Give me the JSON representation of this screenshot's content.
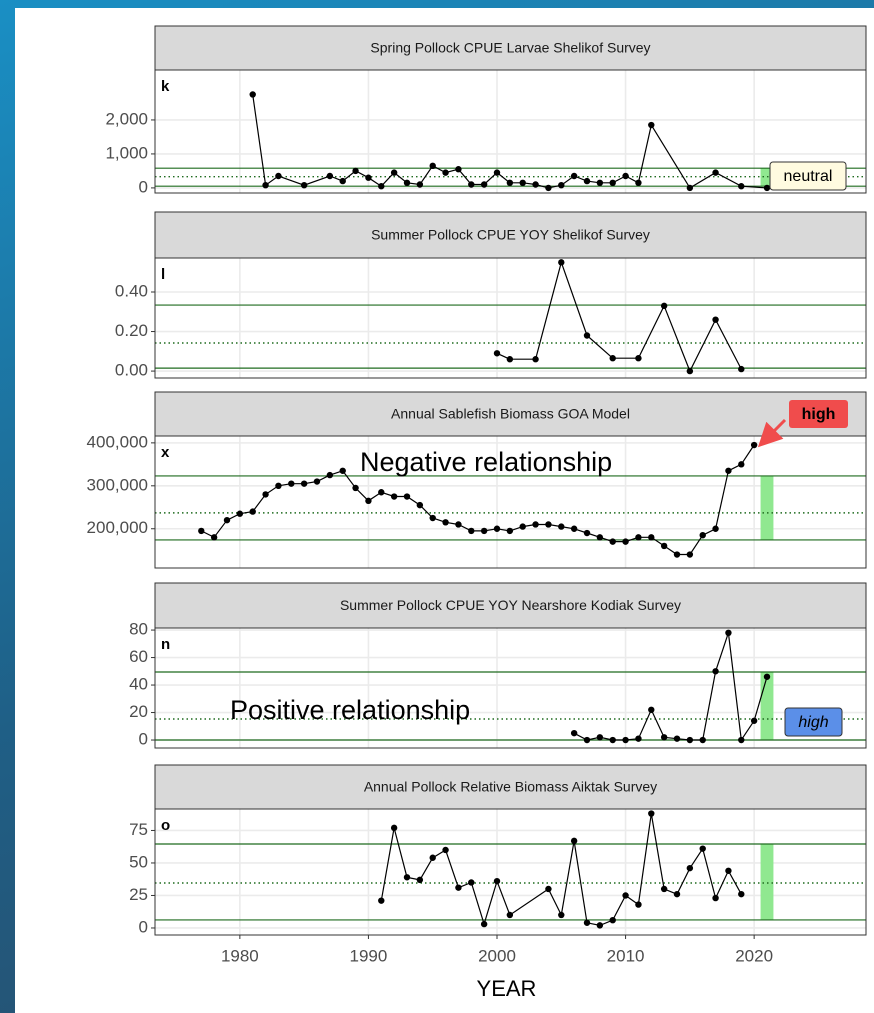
{
  "chart_data": [
    {
      "type": "line",
      "title": "Spring Pollock CPUE Larvae Shelikof Survey",
      "panel_label": "k",
      "status": "neutral",
      "color": "#000000",
      "x": [
        1981,
        1982,
        1983,
        1985,
        1987,
        1988,
        1989,
        1990,
        1991,
        1992,
        1993,
        1994,
        1995,
        1996,
        1997,
        1998,
        1999,
        2000,
        2001,
        2002,
        2003,
        2004,
        2005,
        2006,
        2007,
        2008,
        2009,
        2010,
        2011,
        2012,
        2015,
        2017,
        2019,
        2021
      ],
      "values": [
        2750,
        80,
        350,
        80,
        350,
        200,
        500,
        300,
        50,
        450,
        150,
        100,
        650,
        450,
        550,
        100,
        100,
        450,
        150,
        150,
        100,
        0,
        80,
        350,
        200,
        150,
        150,
        350,
        150,
        1850,
        0,
        450,
        50,
        0
      ],
      "xlim": [
        1973.4,
        2028.7
      ],
      "xticks": [
        1980,
        1990,
        2000,
        2010,
        2020
      ],
      "ylim": [
        -150,
        3470
      ],
      "yticks": [
        {
          "value": 2000,
          "label": "2,000"
        },
        {
          "value": 1000,
          "label": "1,000"
        },
        0
      ],
      "hlines": [
        580,
        330,
        50
      ],
      "highlight_x": 2021
    },
    {
      "type": "line",
      "title": "Summer Pollock CPUE YOY Shelikof Survey",
      "panel_label": "l",
      "color": "#000000",
      "x": [
        2000,
        2001,
        2003,
        2005,
        2007,
        2009,
        2011,
        2013,
        2015,
        2017,
        2019
      ],
      "values": [
        0.09,
        0.06,
        0.06,
        0.55,
        0.18,
        0.065,
        0.065,
        0.33,
        0.0,
        0.26,
        0.01
      ],
      "xlim": [
        1973.4,
        2028.7
      ],
      "xticks": [
        1980,
        1990,
        2000,
        2010,
        2020
      ],
      "ylim": [
        -0.035,
        0.572
      ],
      "yticks": [
        {
          "value": 0.4,
          "label": "0.40"
        },
        {
          "value": 0.2,
          "label": "0.20"
        },
        {
          "value": 0,
          "label": "0.00"
        }
      ],
      "hlines": [
        0.334,
        0.142,
        0.015
      ]
    },
    {
      "type": "line",
      "title": "Annual Sablefish Biomass GOA Model",
      "panel_label": "x",
      "status": "high",
      "note": "Negative relationship",
      "color": "#000000",
      "x": [
        1977,
        1978,
        1979,
        1980,
        1981,
        1982,
        1983,
        1984,
        1985,
        1986,
        1987,
        1988,
        1989,
        1990,
        1991,
        1992,
        1993,
        1994,
        1995,
        1996,
        1997,
        1998,
        1999,
        2000,
        2001,
        2002,
        2003,
        2004,
        2005,
        2006,
        2007,
        2008,
        2009,
        2010,
        2011,
        2012,
        2013,
        2014,
        2015,
        2016,
        2017,
        2018,
        2019,
        2020
      ],
      "values": [
        195000,
        180000,
        220000,
        235000,
        240000,
        280000,
        300000,
        305000,
        305000,
        310000,
        325000,
        335000,
        295000,
        265000,
        285000,
        275000,
        275000,
        255000,
        225000,
        215000,
        210000,
        195000,
        195000,
        200000,
        195000,
        205000,
        210000,
        210000,
        205000,
        200000,
        190000,
        180000,
        170000,
        170000,
        180000,
        180000,
        160000,
        140000,
        140000,
        185000,
        200000,
        335000,
        350000,
        395000
      ],
      "xlim": [
        1973.4,
        2028.7
      ],
      "xticks": [
        1980,
        1990,
        2000,
        2010,
        2020
      ],
      "ylim": [
        108600,
        416000
      ],
      "yticks": [
        {
          "value": 400000,
          "label": "400,000"
        },
        {
          "value": 300000,
          "label": "300,000"
        },
        {
          "value": 200000,
          "label": "200,000"
        }
      ],
      "hlines": [
        323000,
        237000,
        174000
      ],
      "highlight_x": 2021
    },
    {
      "type": "line",
      "title": "Summer Pollock CPUE YOY Nearshore Kodiak Survey",
      "panel_label": "n",
      "status": "high",
      "note": "Positive relationship",
      "color": "#000000",
      "x": [
        2006,
        2007,
        2008,
        2009,
        2010,
        2011,
        2012,
        2013,
        2014,
        2015,
        2016,
        2017,
        2018,
        2019,
        2020,
        2021
      ],
      "values": [
        5,
        0,
        2,
        0,
        0,
        1,
        22,
        2,
        1,
        0,
        0,
        50,
        78,
        0,
        14,
        46
      ],
      "xlim": [
        1973.4,
        2028.7
      ],
      "xticks": [
        1980,
        1990,
        2000,
        2010,
        2020
      ],
      "ylim": [
        -5.8,
        81.5
      ],
      "yticks": [
        80,
        60,
        40,
        20,
        0
      ],
      "hlines": [
        49.5,
        15.3,
        0
      ],
      "highlight_x": 2021
    },
    {
      "type": "line",
      "title": "Annual Pollock Relative Biomass Aiktak Survey",
      "panel_label": "o",
      "xlabel": "YEAR",
      "color": "#000000",
      "x": [
        1991,
        1992,
        1993,
        1994,
        1995,
        1996,
        1997,
        1998,
        1999,
        2000,
        2001,
        2004,
        2005,
        2006,
        2007,
        2008,
        2009,
        2010,
        2011,
        2012,
        2013,
        2014,
        2015,
        2016,
        2017,
        2018,
        2019
      ],
      "values": [
        21,
        77,
        39,
        37,
        54,
        60,
        31,
        35,
        3,
        36,
        10,
        30,
        10,
        67,
        4,
        2,
        6,
        25,
        18,
        88,
        30,
        26,
        46,
        61,
        23,
        44,
        26
      ],
      "xlim": [
        1973.4,
        2028.7
      ],
      "xticks": [
        1980,
        1990,
        2000,
        2010,
        2020
      ],
      "ylim": [
        -5.4,
        91.5
      ],
      "yticks": [
        75,
        50,
        25,
        0
      ],
      "hlines": [
        64.6,
        34.6,
        6.2
      ],
      "highlight_x": 2021
    }
  ]
}
